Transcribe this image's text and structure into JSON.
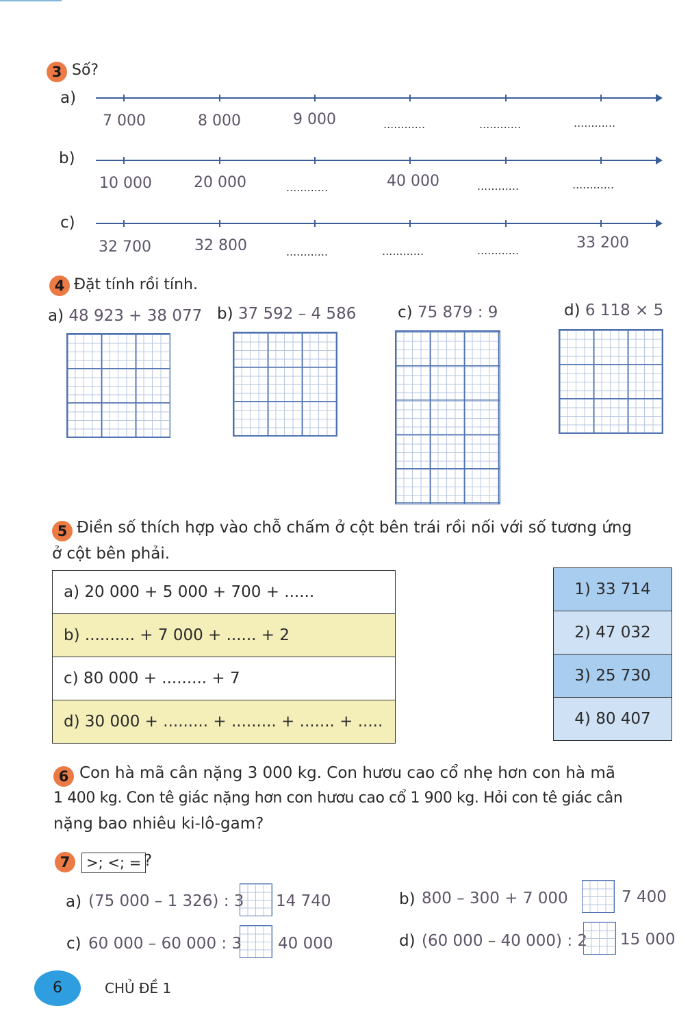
{
  "ex3": {
    "number": "3",
    "title": "Số?",
    "a": {
      "label": "a)",
      "values": [
        "7 000",
        "8 000",
        "9 000",
        "............",
        "............",
        "............"
      ]
    },
    "b": {
      "label": "b)",
      "values": [
        "10 000",
        "20 000",
        "............",
        "40 000",
        "............",
        "............"
      ]
    },
    "c": {
      "label": "c)",
      "values": [
        "32 700",
        "32 800",
        "............",
        "............",
        "............",
        "33 200"
      ]
    }
  },
  "ex4": {
    "number": "4",
    "title": "Đặt tính rồi tính.",
    "items": [
      {
        "label": "a)",
        "expr": "48 923 + 38 077"
      },
      {
        "label": "b)",
        "expr": "37 592 – 4 586"
      },
      {
        "label": "c)",
        "expr": "75 879 : 9"
      },
      {
        "label": "d)",
        "expr": "6 118 × 5"
      }
    ]
  },
  "ex5": {
    "number": "5",
    "title_line1": "Điền số thích hợp vào chỗ chấm ở cột bên trái rồi nối với số tương ứng",
    "title_line2": "ở cột bên phải.",
    "left": [
      "a) 20 000 + 5 000 + 700 + ......",
      "b) .......... + 7 000 + ...... + 2",
      "c) 80 000 + ......... + 7",
      "d) 30 000 + ......... + ......... + ....... + ....."
    ],
    "right": [
      "1) 33 714",
      "2) 47 032",
      "3) 25 730",
      "4) 80 407"
    ],
    "colors": {
      "yellow": "#f4eeb9",
      "blue": "#a9cdef",
      "light_blue": "#cfe1f4"
    }
  },
  "ex6": {
    "number": "6",
    "line1": "Con hà mã cân nặng 3 000 kg. Con hươu cao cổ nhẹ hơn con hà mã",
    "line2": "1 400 kg. Con tê giác nặng hơn con hươu cao cổ 1 900 kg. Hỏi con tê giác cân",
    "line3": "nặng bao nhiêu ki-lô-gam?"
  },
  "ex7": {
    "number": "7",
    "box": ">; <; =",
    "q": "?",
    "items": [
      {
        "label": "a)",
        "left": "(75 000 – 1 326) : 3",
        "right": "14 740"
      },
      {
        "label": "b)",
        "left": "800 – 300 + 7 000",
        "right": "7 400"
      },
      {
        "label": "c)",
        "left": "60 000 – 60 000 : 3",
        "right": "40 000"
      },
      {
        "label": "d)",
        "left": "(60 000 – 40 000) : 2",
        "right": "15 000"
      }
    ]
  },
  "footer": {
    "page": "6",
    "chapter": "CHỦ ĐỀ 1"
  },
  "colors": {
    "accent": "#ec7a45",
    "line": "#3a5f95",
    "page_badge": "#2f9ee0"
  }
}
